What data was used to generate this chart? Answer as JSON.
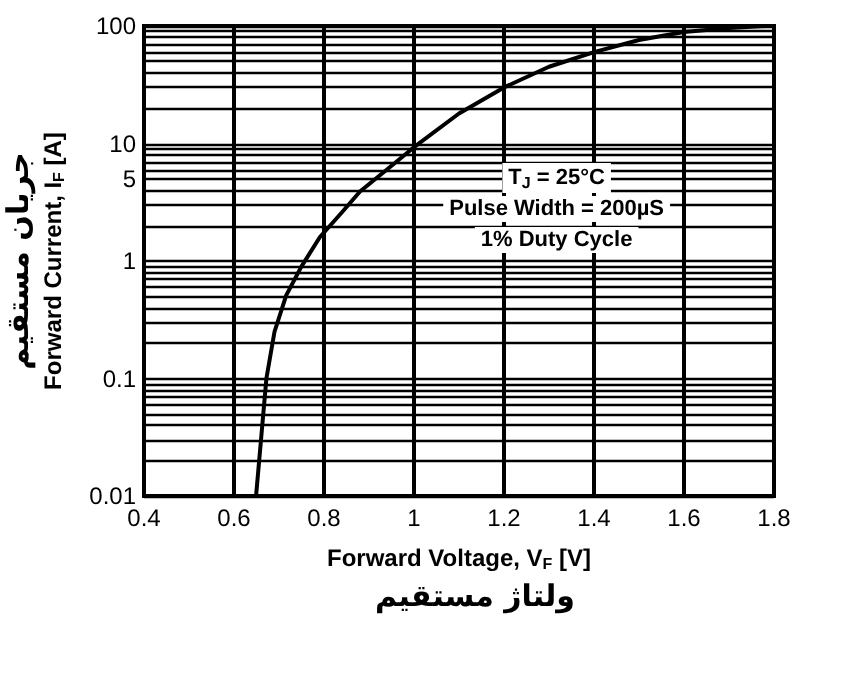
{
  "chart_data": {
    "type": "line",
    "xlabel": "Forward Voltage, V$_{F}$ [V]",
    "ylabel": "Forward Current, I$_{F}$ [A]",
    "annotations": [
      "T$_{J}$ = 25°C",
      "Pulse Width = 200µS",
      "1% Duty Cycle",
      "ولتاژ مستقیم",
      "جریان مستقیم"
    ],
    "series": [
      {
        "color": "#000000",
        "x": [
          0.649,
          0.66,
          0.672,
          0.69,
          0.716,
          0.75,
          0.791,
          0.84,
          0.88,
          0.94,
          1.0,
          1.1,
          1.2,
          1.3,
          1.4,
          1.5,
          1.6,
          1.7,
          1.78
        ],
        "values": [
          0.01,
          0.03,
          0.1,
          0.25,
          0.51,
          0.9,
          1.6,
          2.6,
          3.9,
          6,
          9.3,
          18,
          30,
          45,
          60,
          76,
          89,
          96,
          100
        ]
      }
    ],
    "xlim": [
      0.4,
      1.8
    ],
    "xticks": [
      0.4,
      0.6,
      0.8,
      1,
      1.2,
      1.4,
      1.6,
      1.8
    ],
    "ylim": [
      0.01,
      100
    ],
    "yticks": [
      0.01,
      0.1,
      1,
      5,
      10,
      100
    ],
    "log": "y",
    "grid": true,
    "marker": "none",
    "line_style": "solid"
  }
}
